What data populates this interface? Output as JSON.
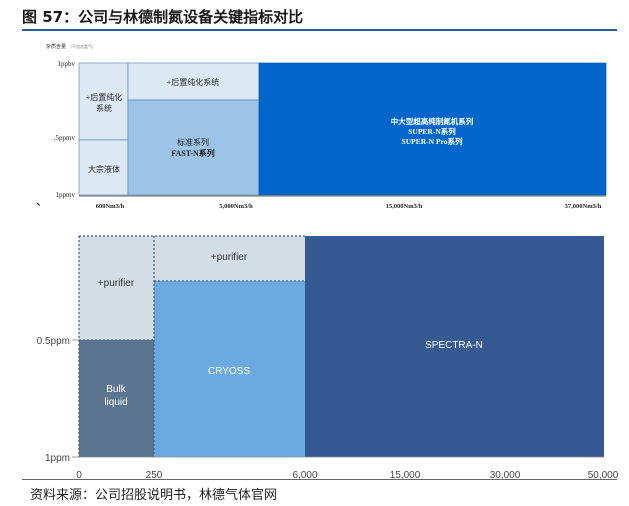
{
  "figure_title": "图 57：公司与林德制氮设备关键指标对比",
  "source_note": "资料来源：公司招股说明书，林德气体官网",
  "stray_mark": "、",
  "chart_data": [
    {
      "type": "area",
      "y_axis_title": "杂质含量",
      "y_axis_subtitle": "（不包含氩气）",
      "y_ticks": [
        "1ppbv",
        ".5ppmv",
        "1ppmv"
      ],
      "x_ticks": [
        "600Nm3/h",
        "5,000Nm3/h",
        "15,000Nm3/h",
        "37,000Nm3/h"
      ],
      "colors": {
        "light": "#dce9f5",
        "mid": "#9dc3e6",
        "dark": "#0066cc",
        "edge": "#4a7fb5"
      },
      "regions": [
        {
          "label": "+后置纯化系统",
          "x_from": 0,
          "x_to": 600,
          "y_from": 1,
          "y_to": 0.5,
          "shade": "light"
        },
        {
          "label": "大宗液体",
          "x_from": 0,
          "x_to": 600,
          "y_from": 0.5,
          "y_to": 0,
          "shade": "light"
        },
        {
          "label": "+后置纯化系统",
          "x_from": 600,
          "x_to": 5000,
          "y_from": 1,
          "y_to": 0.78,
          "shade": "light"
        },
        {
          "label": "标准系列\nFAST-N系列",
          "x_from": 600,
          "x_to": 5000,
          "y_from": 0.78,
          "y_to": 0,
          "shade": "mid"
        },
        {
          "label": "中大型超高纯制氮机系列\nSUPER-N系列\nSUPER-N Pro系列",
          "x_from": 5000,
          "x_to": 37000,
          "y_from": 1,
          "y_to": 0,
          "shade": "dark"
        }
      ]
    },
    {
      "type": "area",
      "y_ticks": [
        "0.5ppm",
        "1ppm"
      ],
      "x_ticks": [
        "0",
        "250",
        "6,000",
        "15,000",
        "30,000",
        "50,000"
      ],
      "colors": {
        "pale": "#d2dde6",
        "slate": "#5b7591",
        "sky": "#6aaae0",
        "navy": "#345a91"
      },
      "regions": [
        {
          "label": "+purifier",
          "x_from": 0,
          "x_to": 250,
          "y_from": 1,
          "y_to": 0.5,
          "shade": "pale"
        },
        {
          "label": "Bulk\nliquid",
          "x_from": 0,
          "x_to": 250,
          "y_from": 0.5,
          "y_to": 0,
          "shade": "slate"
        },
        {
          "label": "+purifier",
          "x_from": 250,
          "x_to": 6000,
          "y_from": 1,
          "y_to": 0.78,
          "shade": "pale"
        },
        {
          "label": "CRYOSS",
          "x_from": 250,
          "x_to": 6000,
          "y_from": 0.78,
          "y_to": 0,
          "shade": "sky"
        },
        {
          "label": "SPECTRA-N",
          "x_from": 6000,
          "x_to": 50000,
          "y_from": 1,
          "y_to": 0,
          "shade": "navy"
        }
      ]
    }
  ]
}
